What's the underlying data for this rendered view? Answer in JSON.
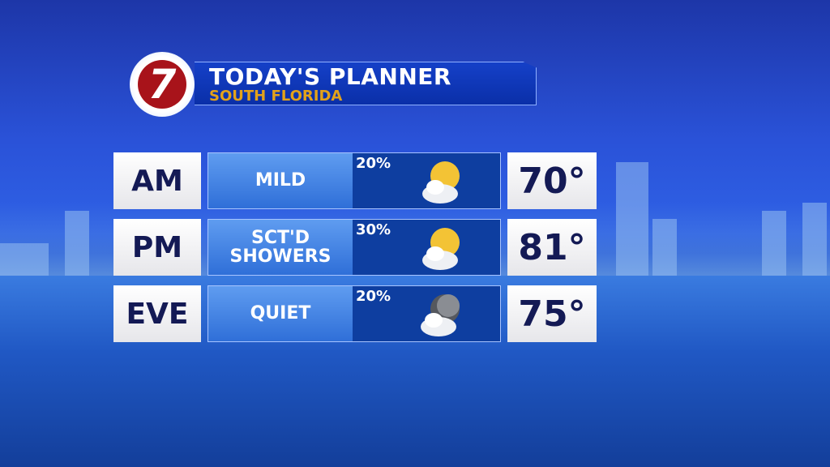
{
  "header": {
    "logo": "7",
    "title": "TODAY'S PLANNER",
    "subtitle": "SOUTH FLORIDA"
  },
  "colors": {
    "title": "#ffffff",
    "subtitle": "#e3a21a",
    "logo": "#a8131a",
    "period_text": "#141a55"
  },
  "rows": [
    {
      "period": "AM",
      "condition": "MILD",
      "chance": "20%",
      "icon": "partly-sunny-icon",
      "temp": "70°"
    },
    {
      "period": "PM",
      "condition": "SCT'D SHOWERS",
      "chance": "30%",
      "icon": "partly-sunny-icon",
      "temp": "81°"
    },
    {
      "period": "EVE",
      "condition": "QUIET",
      "chance": "20%",
      "icon": "partly-cloudy-night-icon",
      "temp": "75°"
    }
  ]
}
